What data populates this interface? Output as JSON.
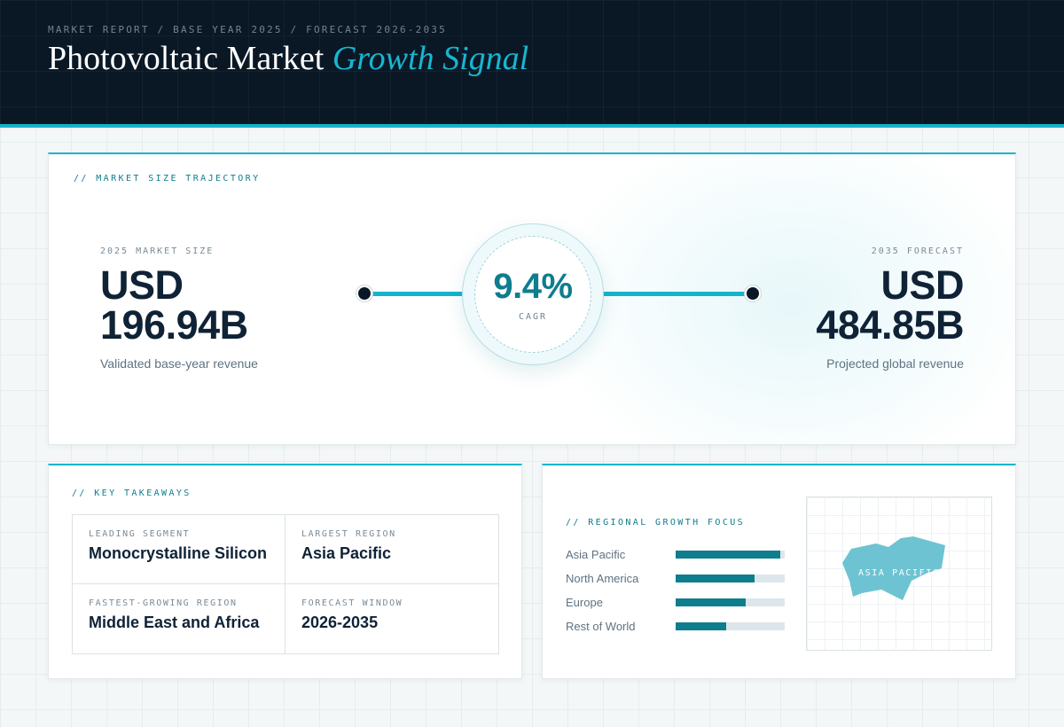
{
  "header": {
    "breadcrumb": "MARKET REPORT / BASE YEAR 2025 / FORECAST 2026-2035",
    "title_main": "Photovoltaic Market",
    "title_accent": "Growth Signal"
  },
  "trajectory": {
    "label": "// MARKET SIZE TRAJECTORY",
    "start": {
      "label": "2025 MARKET SIZE",
      "currency": "USD",
      "value": "196.94B",
      "note": "Validated base-year revenue"
    },
    "cagr": {
      "value": "9.4%",
      "label": "CAGR"
    },
    "end": {
      "label": "2035 FORECAST",
      "currency": "USD",
      "value": "484.85B",
      "note": "Projected global revenue"
    }
  },
  "takeaways": {
    "label": "// KEY TAKEAWAYS",
    "items": [
      {
        "label": "LEADING SEGMENT",
        "value": "Monocrystalline Silicon"
      },
      {
        "label": "LARGEST REGION",
        "value": "Asia Pacific"
      },
      {
        "label": "FASTEST-GROWING REGION",
        "value": "Middle East and Africa"
      },
      {
        "label": "FORECAST WINDOW",
        "value": "2026-2035"
      }
    ]
  },
  "regional": {
    "label": "// REGIONAL GROWTH FOCUS",
    "regions": [
      {
        "name": "Asia Pacific",
        "share": 0.96
      },
      {
        "name": "North America",
        "share": 0.72
      },
      {
        "name": "Europe",
        "share": 0.64
      },
      {
        "name": "Rest of World",
        "share": 0.46
      }
    ],
    "map_label": "ASIA PACIFIC"
  },
  "colors": {
    "accent": "#14b4cc",
    "accent_dark": "#0e7d8e",
    "navy": "#0a1826",
    "track": "#dde6ea"
  }
}
